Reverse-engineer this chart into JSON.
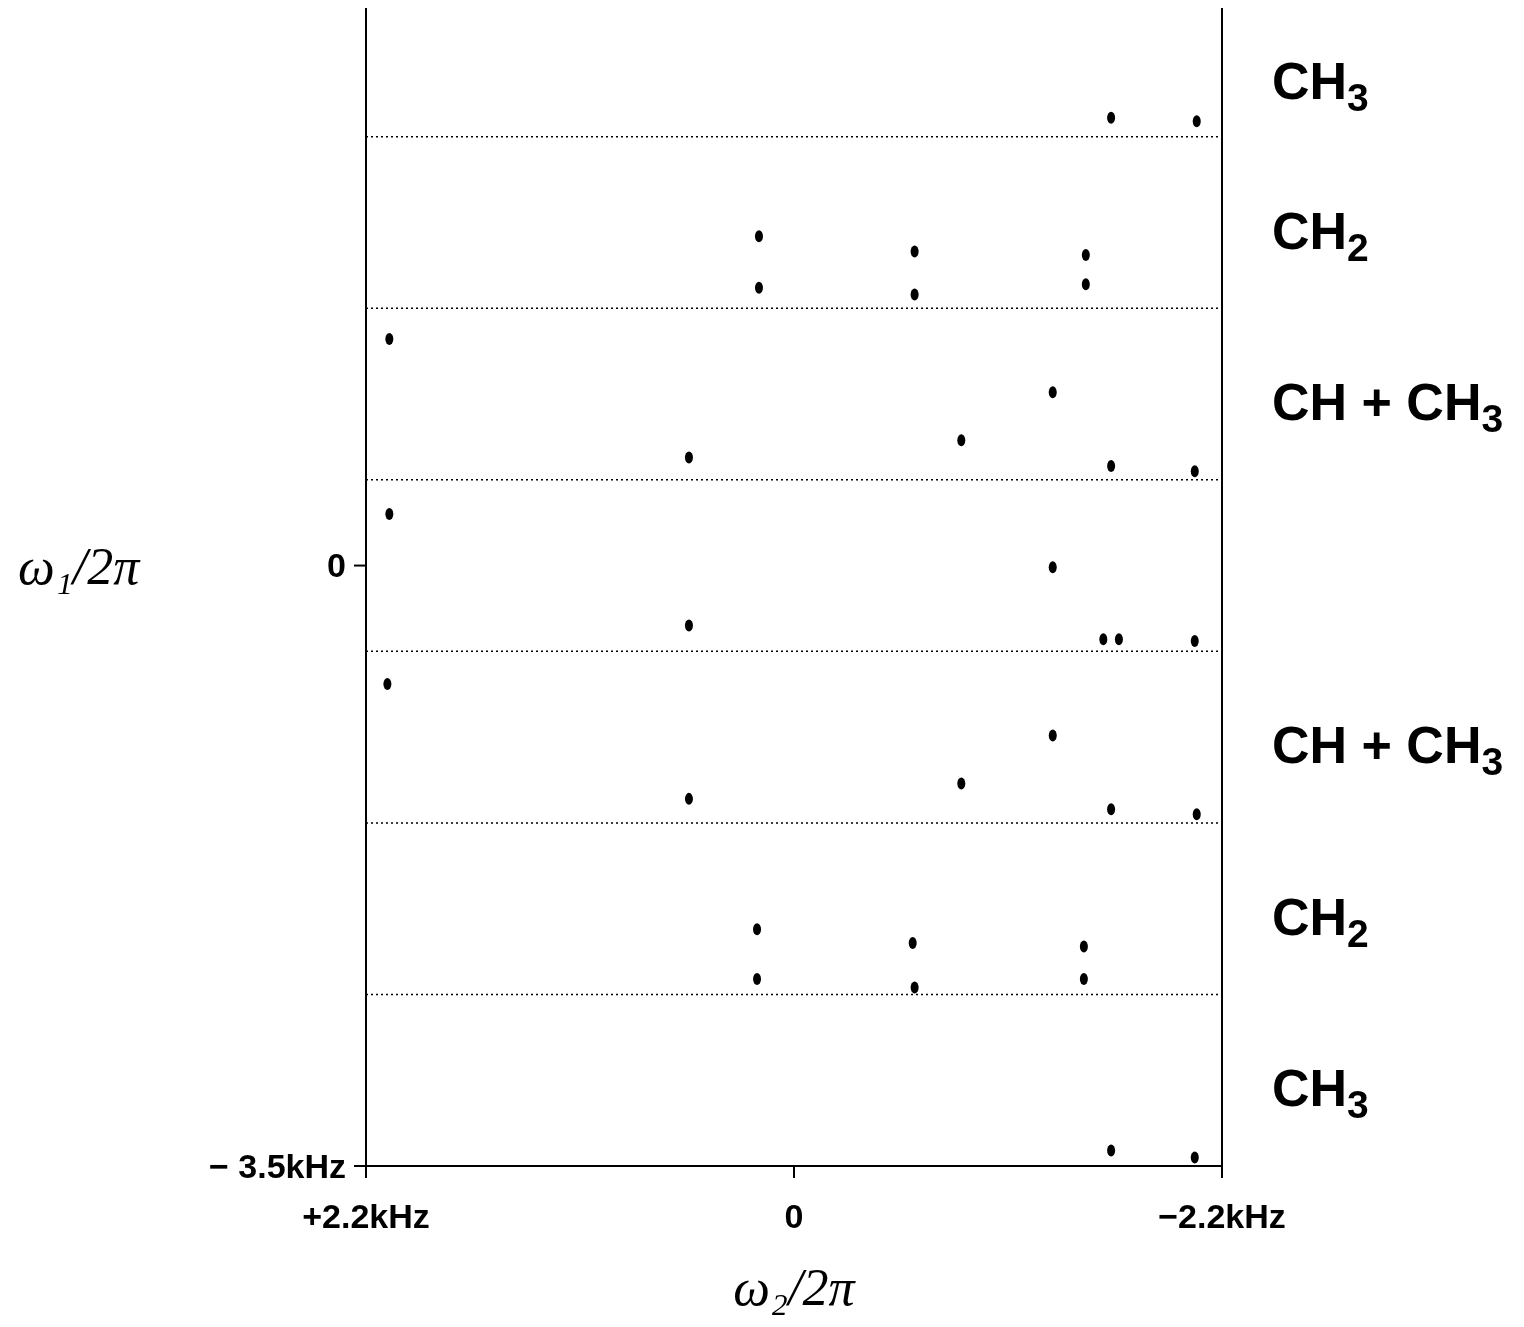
{
  "chart_data": {
    "type": "scatter",
    "xlabel": "ω₂/2π",
    "ylabel": "ω₁/2π",
    "xlim": [
      2.2,
      -2.2
    ],
    "ylim": [
      -3.5,
      3.25
    ],
    "xticks": [
      {
        "value": 2.2,
        "label": "+2.2kHz"
      },
      0,
      {
        "value": -2.2,
        "label": "−2.2kHz"
      }
    ],
    "yticks": [
      0,
      {
        "value": -3.5,
        "label": "− 3.5kHz"
      }
    ],
    "grid": false,
    "marker": "circle",
    "series": [
      {
        "color": "#000000",
        "x": [
          -1.63,
          -2.07,
          0.18,
          0.18,
          -0.62,
          -0.62,
          -1.5,
          -1.5,
          2.08,
          -1.33,
          -0.86,
          0.54,
          -1.63,
          -2.06,
          2.08,
          -1.33,
          0.54,
          -1.59,
          -1.67,
          -2.06,
          2.09,
          -1.33,
          -0.86,
          0.54,
          -1.63,
          -2.07,
          0.19,
          0.19,
          -0.61,
          -0.62,
          -1.49,
          -1.49,
          -1.63,
          -2.06
        ],
        "values": [
          2.61,
          2.59,
          1.92,
          1.62,
          1.83,
          1.58,
          1.81,
          1.64,
          1.32,
          1.01,
          0.73,
          0.63,
          0.58,
          0.55,
          0.3,
          -0.01,
          -0.35,
          -0.43,
          -0.43,
          -0.44,
          -0.69,
          -0.99,
          -1.27,
          -1.36,
          -1.42,
          -1.45,
          -2.12,
          -2.41,
          -2.2,
          -2.46,
          -2.22,
          -2.41,
          -3.41,
          -3.45
        ]
      }
    ],
    "ref_lines": [
      {
        "axis": "y",
        "value": 2.5,
        "line_style": "dotted"
      },
      {
        "axis": "y",
        "value": 1.5,
        "line_style": "dotted"
      },
      {
        "axis": "y",
        "value": 0.5,
        "line_style": "dotted"
      },
      {
        "axis": "y",
        "value": -0.5,
        "line_style": "dotted"
      },
      {
        "axis": "y",
        "value": -1.5,
        "line_style": "dotted"
      },
      {
        "axis": "y",
        "value": -2.5,
        "line_style": "dotted"
      }
    ],
    "annotations": [
      "CH$_{3}$",
      "CH$_{2}$",
      "CH + CH$_{3}$",
      "CH + CH$_{3}$",
      "CH$_{2}$",
      "CH$_{3}$"
    ]
  }
}
